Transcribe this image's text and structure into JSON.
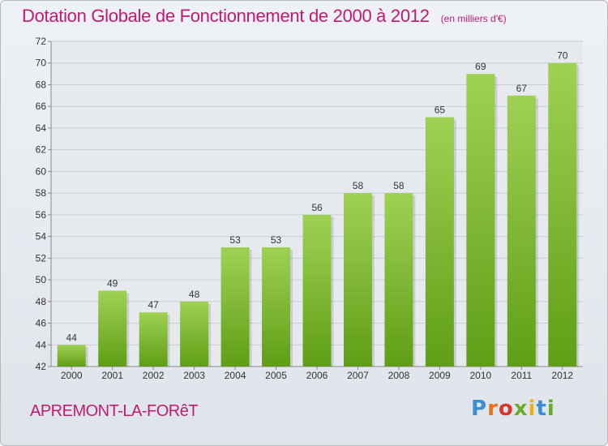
{
  "header": {
    "title": "Dotation Globale de Fonctionnement de 2000 à 2012",
    "subtitle": "(en milliers d'€)"
  },
  "footer": {
    "place": "APREMONT-LA-FORêT",
    "logo": "Proxiti"
  },
  "colors": {
    "title": "#c01a72",
    "bar_top": "#9fd153",
    "bar_bottom": "#5f9e16",
    "grid": "#c9ced6"
  },
  "chart_data": {
    "type": "bar",
    "categories": [
      "2000",
      "2001",
      "2002",
      "2003",
      "2004",
      "2005",
      "2006",
      "2007",
      "2008",
      "2009",
      "2010",
      "2011",
      "2012"
    ],
    "values": [
      44,
      49,
      47,
      48,
      53,
      53,
      56,
      58,
      58,
      65,
      69,
      67,
      70
    ],
    "ylim": [
      42,
      72
    ],
    "yticks": [
      42,
      44,
      46,
      48,
      50,
      52,
      54,
      56,
      58,
      60,
      62,
      64,
      66,
      68,
      70,
      72
    ],
    "grid": true
  }
}
